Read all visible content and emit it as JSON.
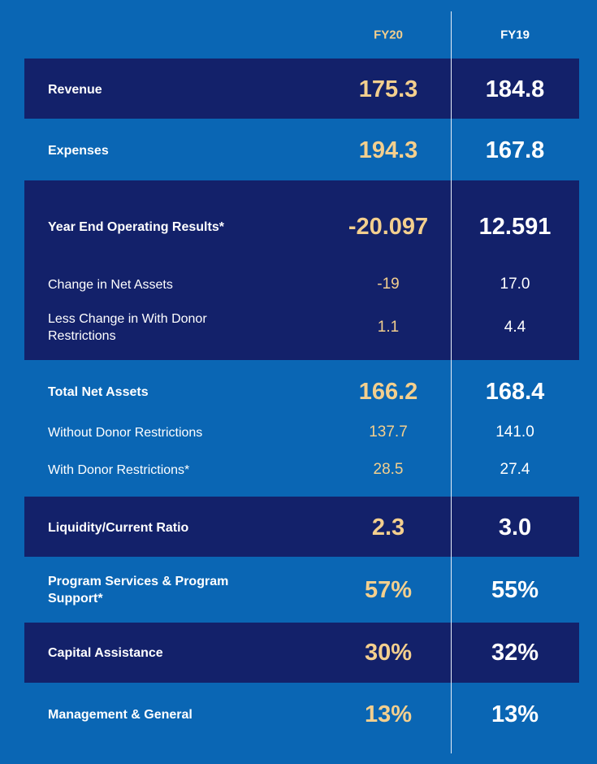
{
  "columns": [
    "FY20",
    "FY19"
  ],
  "colors": {
    "background": "#0a66b4",
    "dark_band": "#13216a",
    "fy20_value": "#f3cf8e",
    "fy19_value": "#ffffff"
  },
  "rows": [
    {
      "label": "Revenue",
      "fy20": "175.3",
      "fy19": "184.8"
    },
    {
      "label": "Expenses",
      "fy20": "194.3",
      "fy19": "167.8"
    },
    {
      "label": "Year End Operating Results*",
      "fy20": "-20.097",
      "fy19": "12.591"
    },
    {
      "label": "Change in Net Assets",
      "fy20": "-19",
      "fy19": "17.0"
    },
    {
      "label": "Less Change in With Donor Restrictions",
      "fy20": "1.1",
      "fy19": "4.4"
    },
    {
      "label": "Total Net Assets",
      "fy20": "166.2",
      "fy19": "168.4"
    },
    {
      "label": "Without Donor Restrictions",
      "fy20": "137.7",
      "fy19": "141.0"
    },
    {
      "label": "With Donor Restrictions*",
      "fy20": "28.5",
      "fy19": "27.4"
    },
    {
      "label": "Liquidity/Current Ratio",
      "fy20": "2.3",
      "fy19": "3.0"
    },
    {
      "label": "Program Services & Program Support*",
      "fy20": "57%",
      "fy19": "55%"
    },
    {
      "label": "Capital Assistance",
      "fy20": "30%",
      "fy19": "32%"
    },
    {
      "label": "Management & General",
      "fy20": "13%",
      "fy19": "13%"
    }
  ]
}
